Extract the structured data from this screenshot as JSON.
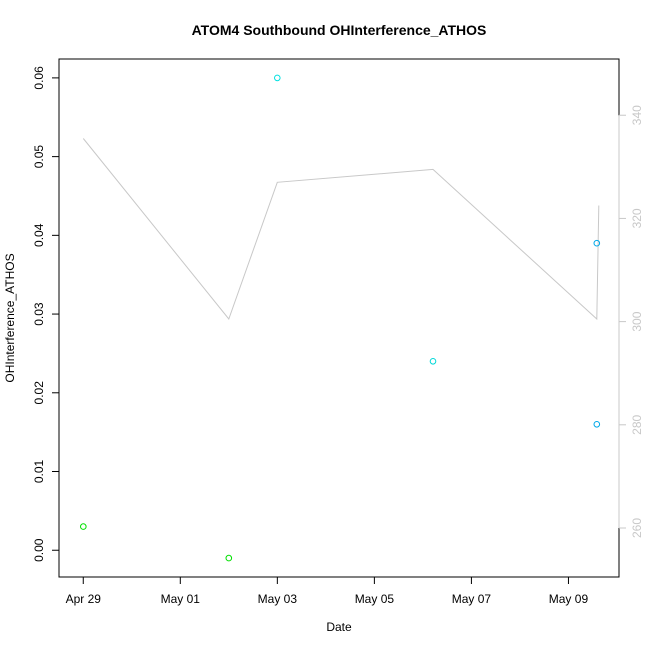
{
  "chart_data": {
    "type": "scatter",
    "title": "ATOM4 Southbound OHInterference_ATHOS",
    "xlabel": "Date",
    "ylabel": "OHInterference_ATHOS",
    "x_ticks": [
      {
        "date": "2017-04-29",
        "label": "Apr 29"
      },
      {
        "date": "2017-05-01",
        "label": "May 01"
      },
      {
        "date": "2017-05-03",
        "label": "May 03"
      },
      {
        "date": "2017-05-05",
        "label": "May 05"
      },
      {
        "date": "2017-05-07",
        "label": "May 07"
      },
      {
        "date": "2017-05-09",
        "label": "May 09"
      }
    ],
    "xlim": [
      "2017-04-28T12:00",
      "2017-05-10T01:00"
    ],
    "y_ticks": [
      {
        "value": 0.0,
        "label": "0.00"
      },
      {
        "value": 0.01,
        "label": "0.01"
      },
      {
        "value": 0.02,
        "label": "0.02"
      },
      {
        "value": 0.03,
        "label": "0.03"
      },
      {
        "value": 0.04,
        "label": "0.04"
      },
      {
        "value": 0.05,
        "label": "0.05"
      },
      {
        "value": 0.06,
        "label": "0.06"
      }
    ],
    "ylim": [
      -0.0034,
      0.0624
    ],
    "y2_ticks": [
      {
        "value": 260,
        "label": "260"
      },
      {
        "value": 280,
        "label": "280"
      },
      {
        "value": 300,
        "label": "300"
      },
      {
        "value": 320,
        "label": "320"
      },
      {
        "value": 340,
        "label": "340"
      }
    ],
    "y2lim": [
      250.5,
      350.9
    ],
    "points": [
      {
        "date": "2017-04-29T00:00",
        "value": 0.003,
        "color": "#00e000"
      },
      {
        "date": "2017-05-02T00:00",
        "value": -0.001,
        "color": "#00e000"
      },
      {
        "date": "2017-05-03T00:00",
        "value": 0.06,
        "color": "#00e0e0"
      },
      {
        "date": "2017-05-06T05:00",
        "value": 0.024,
        "color": "#00d8d8"
      },
      {
        "date": "2017-05-09T14:00",
        "value": 0.016,
        "color": "#00a8e8"
      },
      {
        "date": "2017-05-09T14:00",
        "value": 0.039,
        "color": "#00a8e8"
      }
    ],
    "line": {
      "color": "#c8c8c8",
      "points": [
        {
          "date": "2017-04-29T00:00",
          "value": 335.5
        },
        {
          "date": "2017-05-02T00:00",
          "value": 300.5
        },
        {
          "date": "2017-05-03T00:00",
          "value": 327.0
        },
        {
          "date": "2017-05-06T05:00",
          "value": 329.5
        },
        {
          "date": "2017-05-09T14:00",
          "value": 300.5
        },
        {
          "date": "2017-05-09T15:00",
          "value": 322.5
        }
      ]
    },
    "grid": false
  }
}
